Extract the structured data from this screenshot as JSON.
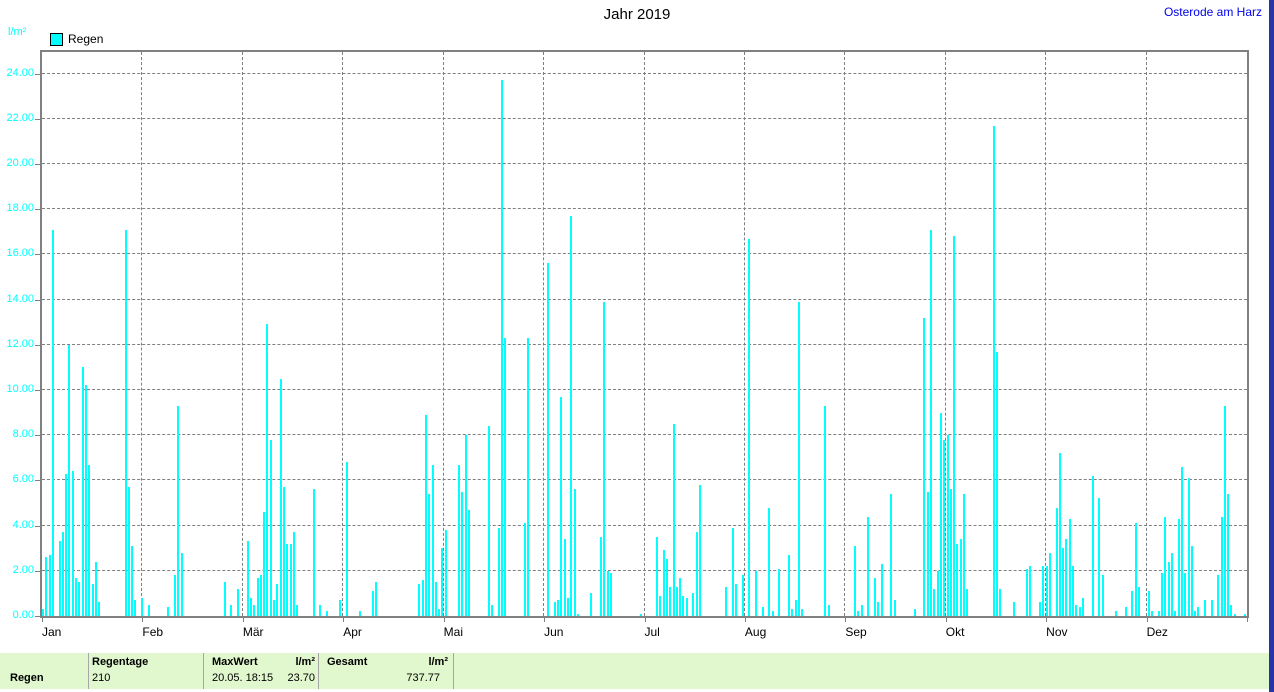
{
  "header": {
    "title": "Jahr 2019",
    "station_link": "Osterode am Harz"
  },
  "chart": {
    "unit_label": "l/m²",
    "legend": {
      "label": "Regen",
      "color": "#00ffff"
    },
    "months": [
      "Jan",
      "Feb",
      "Mär",
      "Apr",
      "Mai",
      "Jun",
      "Jul",
      "Aug",
      "Sep",
      "Okt",
      "Nov",
      "Dez"
    ],
    "y_tick_labels": [
      "0.00",
      "2.00",
      "4.00",
      "6.00",
      "8.00",
      "10.00",
      "12.00",
      "14.00",
      "16.00",
      "18.00",
      "20.00",
      "22.00",
      "24.00"
    ]
  },
  "chart_data": {
    "type": "bar",
    "title": "Jahr 2019",
    "ylabel": "l/m²",
    "series_name": "Regen",
    "bar_color": "#00ffff",
    "x_unit": "day_of_year",
    "days_in_year": 365,
    "ylim": [
      0,
      24.95
    ],
    "y_tick_step": 2,
    "grid": "dashed",
    "legend_position": "top-left",
    "month_starts_doy": [
      1,
      32,
      60,
      91,
      121,
      152,
      182,
      213,
      244,
      274,
      305,
      335
    ],
    "points": [
      [
        1,
        0.3
      ],
      [
        2,
        2.6
      ],
      [
        3,
        2.7
      ],
      [
        4,
        17.1
      ],
      [
        6,
        3.3
      ],
      [
        7,
        3.7
      ],
      [
        8,
        6.3
      ],
      [
        9,
        12.0
      ],
      [
        10,
        6.4
      ],
      [
        11,
        1.7
      ],
      [
        12,
        1.5
      ],
      [
        13,
        11.0
      ],
      [
        14,
        10.2
      ],
      [
        15,
        6.7
      ],
      [
        16,
        1.4
      ],
      [
        17,
        2.4
      ],
      [
        18,
        0.6
      ],
      [
        26,
        17.1
      ],
      [
        27,
        5.7
      ],
      [
        28,
        3.1
      ],
      [
        29,
        0.7
      ],
      [
        31,
        0.8
      ],
      [
        33,
        0.5
      ],
      [
        39,
        0.4
      ],
      [
        41,
        1.8
      ],
      [
        42,
        9.3
      ],
      [
        43,
        2.8
      ],
      [
        56,
        1.5
      ],
      [
        58,
        0.5
      ],
      [
        60,
        1.2
      ],
      [
        63,
        3.3
      ],
      [
        64,
        0.8
      ],
      [
        65,
        0.5
      ],
      [
        66,
        1.7
      ],
      [
        67,
        1.8
      ],
      [
        68,
        4.6
      ],
      [
        69,
        12.9
      ],
      [
        70,
        7.8
      ],
      [
        71,
        0.7
      ],
      [
        72,
        1.4
      ],
      [
        73,
        10.5
      ],
      [
        74,
        5.7
      ],
      [
        75,
        3.2
      ],
      [
        76,
        3.2
      ],
      [
        77,
        3.7
      ],
      [
        78,
        0.5
      ],
      [
        83,
        5.6
      ],
      [
        85,
        0.5
      ],
      [
        87,
        0.2
      ],
      [
        91,
        0.7
      ],
      [
        93,
        6.8
      ],
      [
        97,
        0.2
      ],
      [
        101,
        1.1
      ],
      [
        102,
        1.5
      ],
      [
        115,
        1.4
      ],
      [
        116,
        1.6
      ],
      [
        117,
        8.9
      ],
      [
        118,
        5.4
      ],
      [
        119,
        6.7
      ],
      [
        120,
        1.5
      ],
      [
        121,
        0.3
      ],
      [
        122,
        3.0
      ],
      [
        123,
        3.8
      ],
      [
        127,
        6.7
      ],
      [
        128,
        5.5
      ],
      [
        129,
        8.0
      ],
      [
        130,
        4.7
      ],
      [
        136,
        8.4
      ],
      [
        137,
        0.5
      ],
      [
        139,
        3.9
      ],
      [
        140,
        23.7
      ],
      [
        141,
        12.3
      ],
      [
        147,
        4.1
      ],
      [
        148,
        12.3
      ],
      [
        154,
        15.6
      ],
      [
        156,
        0.6
      ],
      [
        157,
        0.7
      ],
      [
        158,
        9.7
      ],
      [
        159,
        3.4
      ],
      [
        160,
        0.8
      ],
      [
        161,
        17.7
      ],
      [
        162,
        5.6
      ],
      [
        163,
        0.1
      ],
      [
        167,
        1.0
      ],
      [
        170,
        3.5
      ],
      [
        171,
        13.9
      ],
      [
        172,
        2.0
      ],
      [
        173,
        1.9
      ],
      [
        182,
        0.1
      ],
      [
        187,
        3.5
      ],
      [
        188,
        0.9
      ],
      [
        189,
        2.9
      ],
      [
        190,
        2.5
      ],
      [
        191,
        1.3
      ],
      [
        192,
        8.5
      ],
      [
        193,
        1.3
      ],
      [
        194,
        1.7
      ],
      [
        195,
        0.9
      ],
      [
        196,
        0.8
      ],
      [
        198,
        1.0
      ],
      [
        199,
        3.7
      ],
      [
        200,
        5.8
      ],
      [
        208,
        1.3
      ],
      [
        210,
        3.9
      ],
      [
        211,
        1.4
      ],
      [
        213,
        1.8
      ],
      [
        215,
        16.7
      ],
      [
        217,
        2.0
      ],
      [
        219,
        0.4
      ],
      [
        221,
        4.8
      ],
      [
        222,
        0.2
      ],
      [
        224,
        2.1
      ],
      [
        227,
        2.7
      ],
      [
        228,
        0.3
      ],
      [
        229,
        0.7
      ],
      [
        230,
        13.9
      ],
      [
        231,
        0.3
      ],
      [
        238,
        9.3
      ],
      [
        239,
        0.5
      ],
      [
        247,
        3.1
      ],
      [
        248,
        0.2
      ],
      [
        249,
        0.5
      ],
      [
        251,
        4.4
      ],
      [
        253,
        1.7
      ],
      [
        254,
        0.6
      ],
      [
        255,
        2.3
      ],
      [
        258,
        5.4
      ],
      [
        259,
        0.7
      ],
      [
        265,
        0.3
      ],
      [
        268,
        13.2
      ],
      [
        269,
        5.5
      ],
      [
        270,
        17.1
      ],
      [
        271,
        1.2
      ],
      [
        272,
        2.0
      ],
      [
        273,
        9.0
      ],
      [
        274,
        7.8
      ],
      [
        275,
        8.0
      ],
      [
        276,
        5.6
      ],
      [
        277,
        16.8
      ],
      [
        278,
        3.2
      ],
      [
        279,
        3.4
      ],
      [
        280,
        5.4
      ],
      [
        281,
        1.2
      ],
      [
        289,
        21.7
      ],
      [
        290,
        11.7
      ],
      [
        291,
        1.2
      ],
      [
        295,
        0.6
      ],
      [
        299,
        2.1
      ],
      [
        300,
        2.2
      ],
      [
        303,
        0.6
      ],
      [
        304,
        2.2
      ],
      [
        305,
        2.2
      ],
      [
        306,
        2.8
      ],
      [
        308,
        4.8
      ],
      [
        309,
        7.2
      ],
      [
        310,
        3.0
      ],
      [
        311,
        3.4
      ],
      [
        312,
        4.3
      ],
      [
        313,
        2.2
      ],
      [
        314,
        0.5
      ],
      [
        315,
        0.4
      ],
      [
        316,
        0.8
      ],
      [
        319,
        6.2
      ],
      [
        321,
        5.2
      ],
      [
        322,
        1.8
      ],
      [
        326,
        0.2
      ],
      [
        329,
        0.4
      ],
      [
        331,
        1.1
      ],
      [
        332,
        4.1
      ],
      [
        333,
        1.3
      ],
      [
        336,
        1.1
      ],
      [
        337,
        0.2
      ],
      [
        339,
        0.2
      ],
      [
        340,
        1.9
      ],
      [
        341,
        4.4
      ],
      [
        342,
        2.4
      ],
      [
        343,
        2.8
      ],
      [
        344,
        0.2
      ],
      [
        345,
        4.3
      ],
      [
        346,
        6.6
      ],
      [
        347,
        1.9
      ],
      [
        348,
        6.1
      ],
      [
        349,
        3.1
      ],
      [
        350,
        0.2
      ],
      [
        351,
        0.4
      ],
      [
        353,
        0.7
      ],
      [
        355,
        0.7
      ],
      [
        357,
        1.8
      ],
      [
        358,
        4.4
      ],
      [
        359,
        9.3
      ],
      [
        360,
        5.4
      ],
      [
        361,
        0.5
      ],
      [
        362,
        0.1
      ],
      [
        365,
        0.1
      ]
    ]
  },
  "summary_table": {
    "row_label": "Regen",
    "cells": [
      {
        "header": "Regentage",
        "value": "210"
      },
      {
        "header": "MaxWert",
        "unit": "l/m²",
        "value_left": "20.05. 18:15",
        "value_right": "23.70"
      },
      {
        "header": "Gesamt",
        "unit": "l/m²",
        "value_right": "737.77"
      }
    ]
  },
  "colors": {
    "bar": "#00ffff",
    "axis_text": "#00ffff",
    "grid": "#808080",
    "link": "#0000ee",
    "table_bg": "#e1f7cd",
    "window_edge": "#2534a6"
  }
}
